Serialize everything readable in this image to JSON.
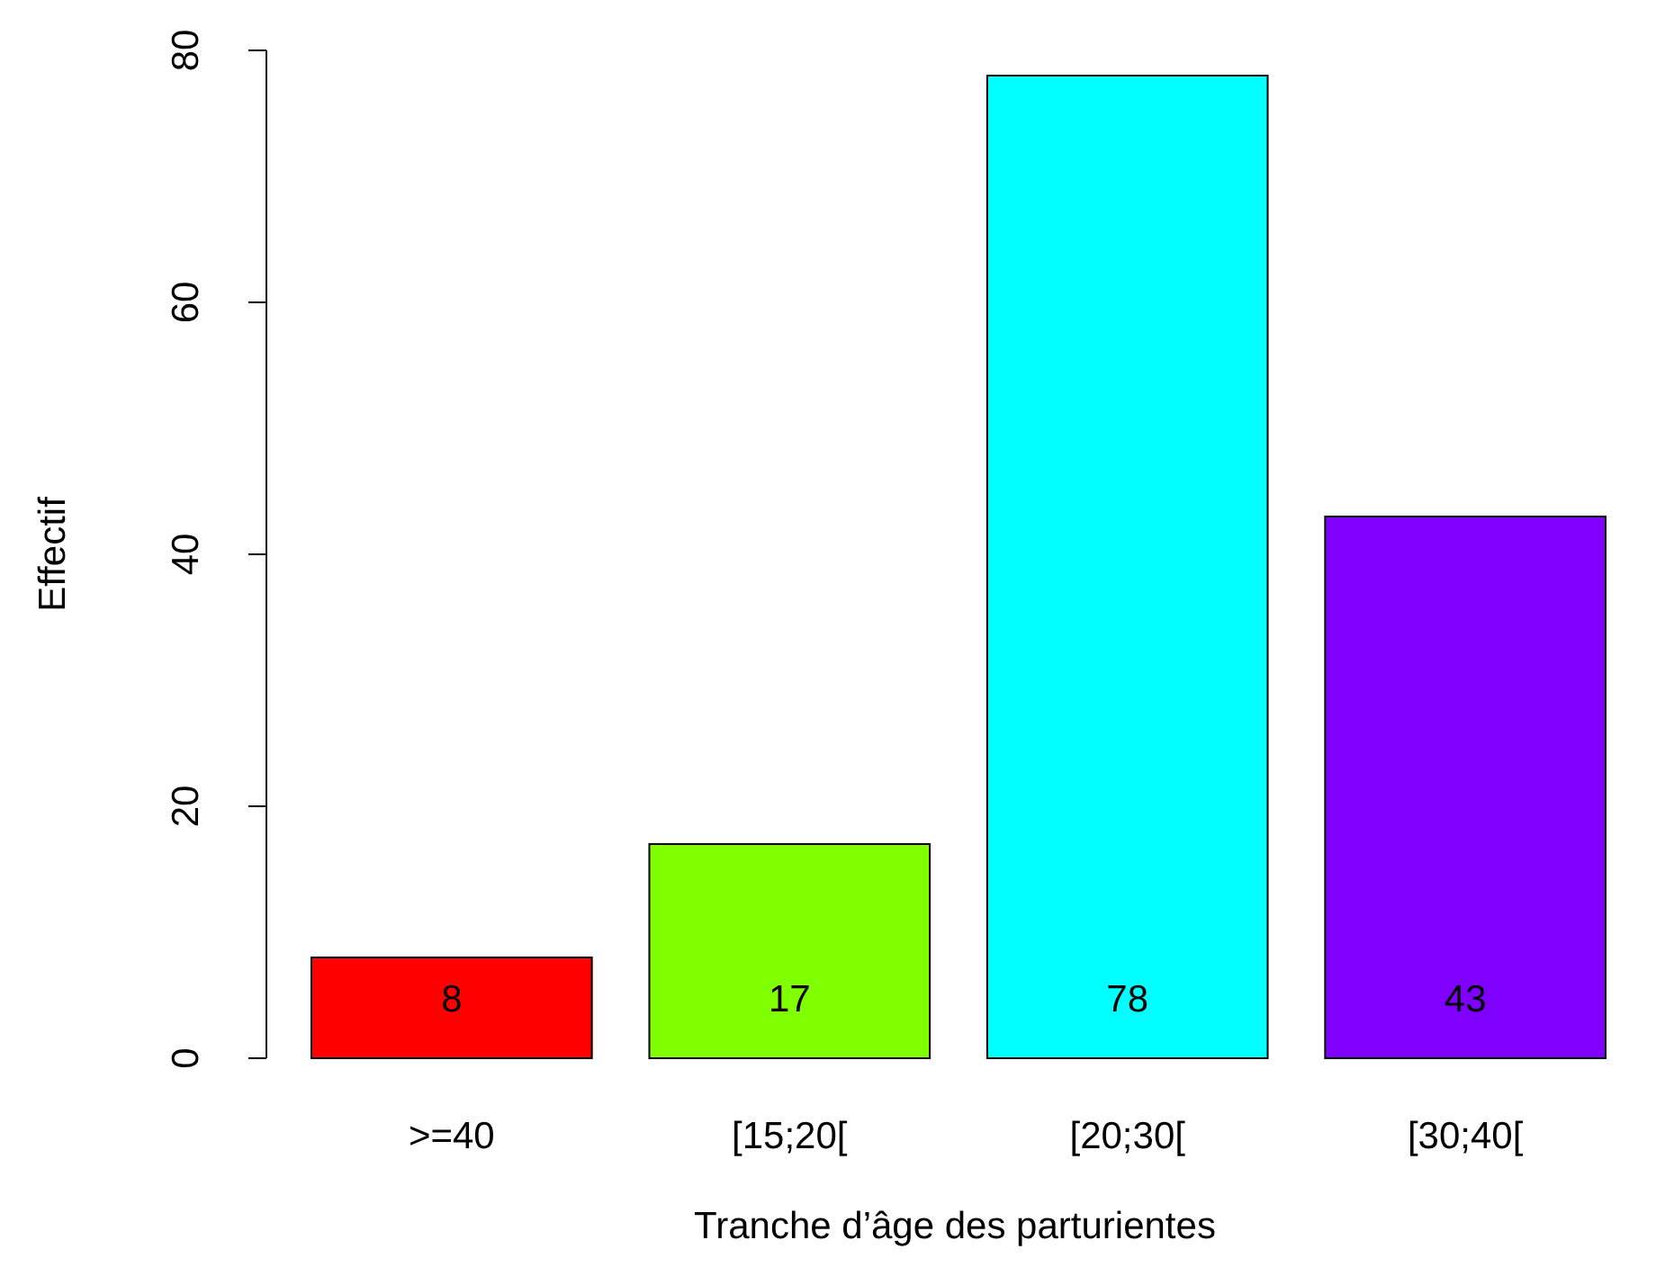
{
  "chart_data": {
    "type": "bar",
    "xlabel": "Tranche d’âge des parturientes",
    "ylabel": "Effectif",
    "categories": [
      ">=40",
      "[15;20[",
      "[20;30[",
      "[30;40["
    ],
    "values": [
      8,
      17,
      78,
      43
    ],
    "colors": [
      "#ff0000",
      "#80ff00",
      "#00ffff",
      "#8000ff"
    ],
    "ylim": [
      0,
      80
    ],
    "yticks": [
      0,
      20,
      40,
      60,
      80
    ],
    "data_labels": true
  }
}
